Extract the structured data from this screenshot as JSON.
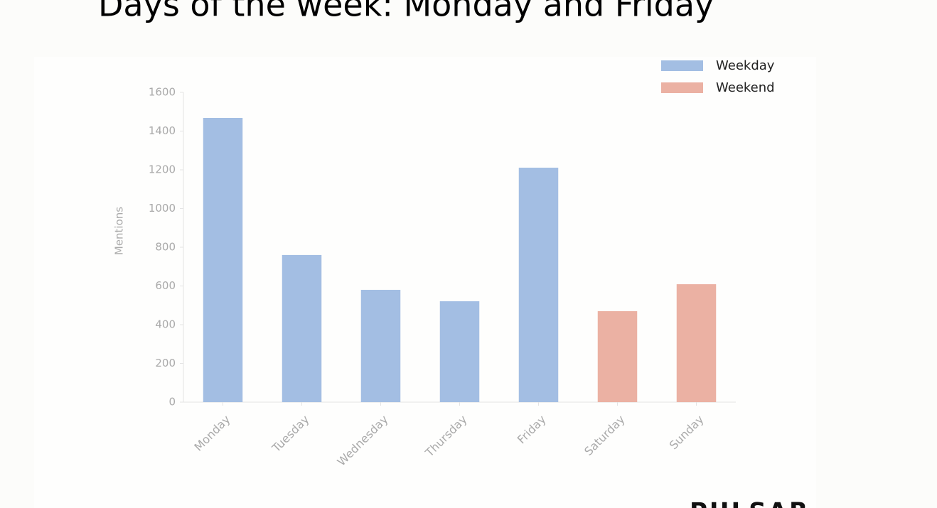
{
  "chart_data": {
    "type": "bar",
    "title": "Days of the week: Monday and Friday",
    "y_label": "Mentions",
    "brand": "PULSAR",
    "categories": [
      "Monday",
      "Tuesday",
      "Wednesday",
      "Thursday",
      "Friday",
      "Saturday",
      "Sunday"
    ],
    "series": [
      {
        "name": "Weekday",
        "color": "#a3bee3",
        "values": [
          1468,
          760,
          580,
          521,
          1211,
          null,
          null
        ]
      },
      {
        "name": "Weekend",
        "color": "#ebb1a3",
        "values": [
          null,
          null,
          null,
          null,
          null,
          470,
          609
        ]
      }
    ],
    "ylim": [
      0,
      1600
    ],
    "yticks": [
      0,
      200,
      400,
      600,
      800,
      1000,
      1200,
      1400,
      1600
    ],
    "legend": "upper right"
  }
}
